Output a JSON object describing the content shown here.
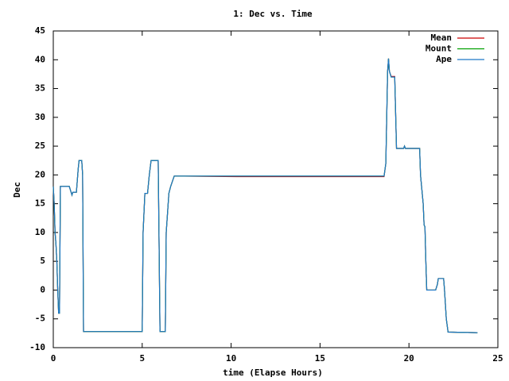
{
  "chart_data": {
    "type": "line",
    "title": "1: Dec vs. Time",
    "x_label": "time (Elapse Hours)",
    "y_label": "Dec",
    "x": [
      0,
      0.05,
      0.1,
      0.15,
      0.2,
      0.25,
      0.3,
      0.35,
      0.4,
      0.9,
      1.0,
      1.05,
      1.1,
      1.3,
      1.4,
      1.45,
      1.6,
      1.65,
      1.7,
      5.0,
      5.05,
      5.15,
      5.3,
      5.4,
      5.5,
      5.9,
      6.0,
      6.3,
      6.35,
      6.5,
      6.6,
      6.8,
      10.3,
      18.6,
      18.7,
      18.75,
      18.8,
      18.85,
      18.9,
      19.0,
      19.2,
      19.3,
      19.7,
      19.75,
      19.8,
      20.6,
      20.65,
      20.8,
      20.85,
      20.9,
      20.95,
      21.0,
      21.5,
      21.6,
      21.65,
      21.95,
      22.0,
      22.1,
      22.2,
      23.85
    ],
    "series": [
      {
        "name": "Mean",
        "color": "#cc0000",
        "values": [
          18,
          15,
          10,
          8,
          5,
          0,
          -4,
          -4,
          18,
          18,
          17,
          16.5,
          17,
          17,
          21,
          22.5,
          22.5,
          20,
          -7.2,
          -7.2,
          10,
          16.8,
          16.8,
          20,
          22.5,
          22.5,
          -7.2,
          -7.2,
          10,
          16.8,
          18,
          19.8,
          19.7,
          19.7,
          22,
          30,
          38,
          40.2,
          38,
          37.1,
          37.1,
          24.6,
          24.6,
          25,
          24.6,
          24.6,
          20,
          15,
          11.3,
          11,
          5,
          0,
          0,
          1,
          2,
          2,
          0,
          -5,
          -7.3,
          -7.4
        ]
      },
      {
        "name": "Mount",
        "color": "#00a000",
        "values": [
          18,
          15,
          10,
          8,
          5,
          0,
          -4,
          -4,
          18,
          18,
          17,
          16.5,
          17,
          17,
          21,
          22.5,
          22.5,
          20,
          -7.2,
          -7.2,
          10,
          16.8,
          16.8,
          20,
          22.5,
          22.5,
          -7.2,
          -7.2,
          10,
          16.8,
          18,
          19.8,
          19.8,
          19.8,
          22,
          30,
          38,
          40.2,
          38,
          37,
          37,
          24.6,
          24.6,
          25,
          24.6,
          24.6,
          20,
          15,
          11.3,
          11,
          5,
          0,
          0,
          1,
          2,
          2,
          0,
          -5,
          -7.3,
          -7.4
        ]
      },
      {
        "name": "Ape",
        "color": "#1f78c8",
        "values": [
          18,
          15,
          10,
          8,
          5,
          0,
          -4,
          -4,
          18,
          18,
          17,
          16.5,
          17,
          17,
          21,
          22.5,
          22.5,
          20,
          -7.2,
          -7.2,
          10,
          16.8,
          16.8,
          20,
          22.5,
          22.5,
          -7.2,
          -7.2,
          10,
          16.8,
          18,
          19.8,
          19.8,
          19.8,
          22,
          30,
          38,
          40.2,
          38,
          37,
          37,
          24.6,
          24.6,
          25,
          24.6,
          24.6,
          20,
          15,
          11.3,
          11,
          5,
          0,
          0,
          1,
          2,
          2,
          0,
          -5,
          -7.3,
          -7.4
        ]
      }
    ],
    "xlim": [
      0,
      25
    ],
    "xticks": [
      0,
      5,
      10,
      15,
      20,
      25
    ],
    "ylim": [
      -10,
      45
    ],
    "yticks": [
      -10,
      -5,
      0,
      5,
      10,
      15,
      20,
      25,
      30,
      35,
      40,
      45
    ],
    "legend": "top-right"
  }
}
